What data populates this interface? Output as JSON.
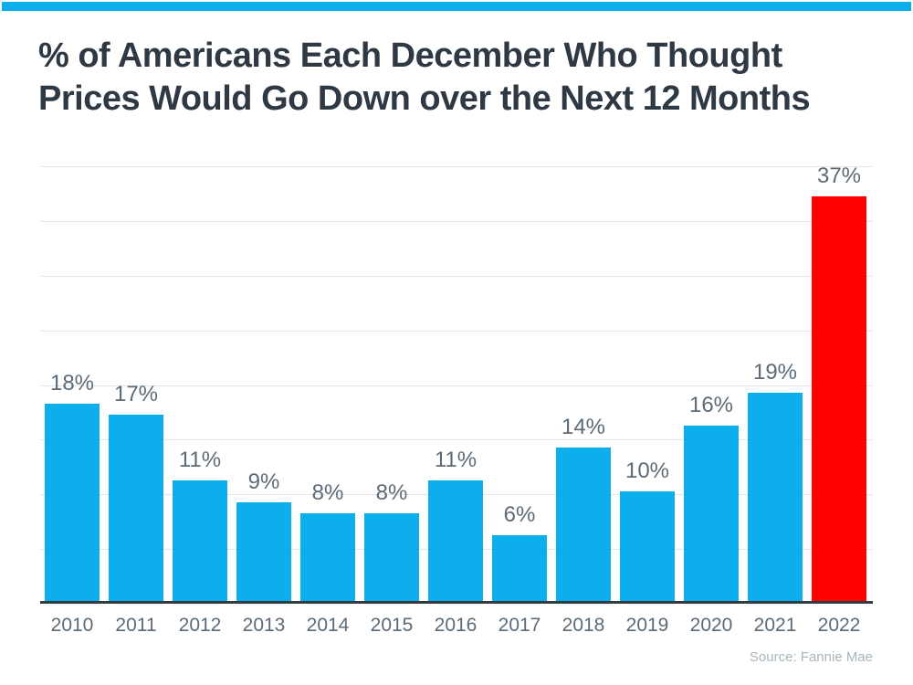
{
  "page": {
    "banner_color": "#0daeec"
  },
  "header": {
    "title_line1": "% of Americans Each December Who Thought",
    "title_line2": "Prices Would Go Down over the Next 12 Months"
  },
  "footer": {
    "source": "Source: Fannie Mae"
  },
  "chart_data": {
    "type": "bar",
    "title": "% of Americans Each December Who Thought Prices Would Go Down over the Next 12 Months",
    "categories": [
      "2010",
      "2011",
      "2012",
      "2013",
      "2014",
      "2015",
      "2016",
      "2017",
      "2018",
      "2019",
      "2020",
      "2021",
      "2022"
    ],
    "values": [
      18,
      17,
      11,
      9,
      8,
      8,
      11,
      6,
      14,
      10,
      16,
      19,
      37
    ],
    "labels": [
      "18%",
      "17%",
      "11%",
      "9%",
      "8%",
      "8%",
      "11%",
      "6%",
      "14%",
      "10%",
      "16%",
      "19%",
      "37%"
    ],
    "xlabel": "",
    "ylabel": "",
    "ylim": [
      0,
      40
    ],
    "grid_step": 5,
    "grid": true,
    "legend": "none",
    "bar_color": "#0daeec",
    "highlight_index": 12,
    "highlight_color": "#fe0000",
    "value_labels_shown": true,
    "source": "Source: Fannie Mae"
  },
  "colors": {
    "banner": "#0daeec",
    "bar": "#0daeec",
    "highlight": "#fe0000",
    "title": "#2e3944",
    "label": "#5d6b78",
    "source": "#a9b5bd",
    "gridline": "#e3e5e7",
    "axis": "#333b41"
  }
}
